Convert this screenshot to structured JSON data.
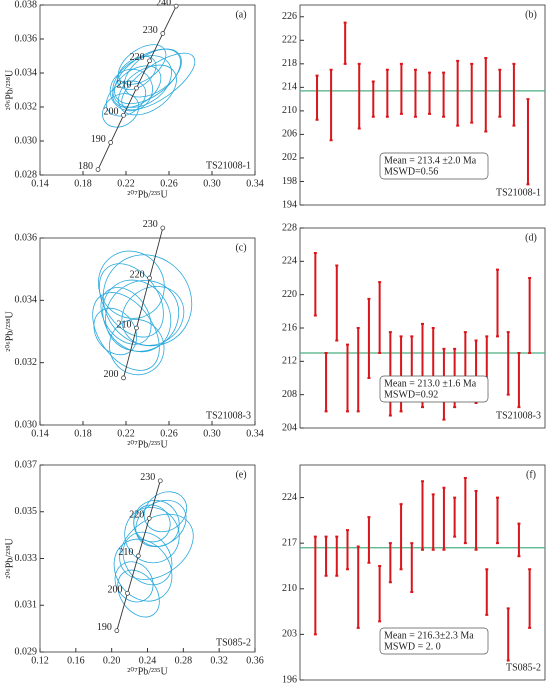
{
  "chart_data": [
    {
      "type": "concordia",
      "panel_label": "(a)",
      "sample": "TS21008-1",
      "x_label": "²⁰⁷Pb/²³⁵U",
      "y_label": "²⁰⁶Pb/²³⁸U",
      "color": "#29a9dc",
      "xlim": [
        0.14,
        0.34
      ],
      "xticks": [
        0.14,
        0.18,
        0.22,
        0.26,
        {
          "value": 0.3,
          "label": "0.30"
        },
        0.34
      ],
      "ylim": [
        0.028,
        0.038
      ],
      "yticks": [
        0.028,
        {
          "value": 0.03,
          "label": "0.030"
        },
        0.032,
        0.034,
        0.036,
        0.038
      ],
      "concordia": {
        "ages": [
          "180",
          "190",
          "200",
          "210",
          "220",
          "230",
          "240"
        ],
        "x": [
          0.19396,
          0.20576,
          0.21769,
          0.22975,
          0.24193,
          0.25423,
          0.26664
        ],
        "y": [
          0.02832,
          0.029912,
          0.031511,
          0.033113,
          0.034717,
          0.036323,
          0.037932
        ]
      },
      "ellipses": {
        "x": [
          0.235,
          0.23,
          0.24,
          0.225,
          0.245,
          0.22,
          0.25,
          0.235,
          0.23,
          0.215,
          0.24
        ],
        "y": [
          0.0335,
          0.0332,
          0.0338,
          0.033,
          0.034,
          0.0325,
          0.0335,
          0.0345,
          0.034,
          0.0318,
          0.033
        ],
        "sx": [
          0.03,
          0.025,
          0.035,
          0.02,
          0.03,
          0.02,
          0.04,
          0.025,
          0.02,
          0.018,
          0.03
        ],
        "sy": [
          0.0013,
          0.001,
          0.0012,
          0.0012,
          0.0011,
          0.0009,
          0.001,
          0.0009,
          0.0008,
          0.0009,
          0.0012
        ]
      }
    },
    {
      "type": "errorbar",
      "panel_label": "(b)",
      "sample": "TS21008-1",
      "color": "#d9161b",
      "mean_color": "#4caf82",
      "ylim": [
        194,
        228
      ],
      "yticks": [
        194,
        198,
        202,
        206,
        210,
        214,
        218,
        222,
        226
      ],
      "values": [
        212.25,
        211,
        221.5,
        212.5,
        212,
        213,
        213.75,
        213,
        213,
        212.75,
        213,
        213,
        212.75,
        213,
        212.75,
        204.75
      ],
      "errors": [
        3.75,
        6,
        3.5,
        5.5,
        3,
        4,
        4.25,
        4,
        3.5,
        3.75,
        5.5,
        5,
        6.25,
        4,
        5.25,
        7.25
      ],
      "mean": 213.4,
      "mean_text": "Mean = 213.4 ±2.0 Ma",
      "mswd_text": "MSWD=0.56"
    },
    {
      "type": "concordia",
      "panel_label": "(c)",
      "sample": "TS21008-3",
      "x_label": "²⁰⁷Pb/²³⁵U",
      "y_label": "²⁰⁶Pb/²³⁸U",
      "color": "#29a9dc",
      "xlim": [
        0.14,
        0.34
      ],
      "xticks": [
        0.14,
        0.18,
        0.22,
        0.26,
        {
          "value": 0.3,
          "label": "0.30"
        },
        0.34
      ],
      "ylim": [
        0.03,
        0.036
      ],
      "yticks": [
        {
          "value": 0.03,
          "label": "0.030"
        },
        0.032,
        0.034,
        0.036
      ],
      "concordia": {
        "ages": [
          "200",
          "210",
          "220",
          "230"
        ],
        "x": [
          0.21769,
          0.22975,
          0.24193,
          0.25423
        ],
        "y": [
          0.031511,
          0.033113,
          0.034717,
          0.036323
        ]
      },
      "ellipses": {
        "x": [
          0.23,
          0.225,
          0.22,
          0.235,
          0.24,
          0.225,
          0.21,
          0.245,
          0.23,
          0.22
        ],
        "y": [
          0.0335,
          0.034,
          0.0335,
          0.0335,
          0.034,
          0.0345,
          0.033,
          0.0335,
          0.0325,
          0.033
        ],
        "sx": [
          0.03,
          0.025,
          0.02,
          0.035,
          0.04,
          0.03,
          0.018,
          0.03,
          0.025,
          0.025
        ],
        "sy": [
          0.0012,
          0.0013,
          0.001,
          0.0011,
          0.0015,
          0.0011,
          0.0008,
          0.0009,
          0.0009,
          0.0014
        ]
      }
    },
    {
      "type": "errorbar",
      "panel_label": "(d)",
      "sample": "TS21008-3",
      "color": "#d9161b",
      "mean_color": "#4caf82",
      "ylim": [
        204,
        228
      ],
      "yticks": [
        204,
        208,
        212,
        216,
        220,
        224,
        228
      ],
      "values": [
        221.25,
        209.5,
        219,
        210,
        211,
        214.75,
        217.25,
        210.5,
        210.5,
        211.25,
        211.5,
        211.75,
        209.25,
        210,
        211.5,
        210.75,
        211.5,
        219,
        211.75,
        209.75,
        217.5
      ],
      "errors": [
        3.75,
        3.5,
        4.5,
        4,
        5,
        4.75,
        4.25,
        5,
        4.5,
        3.75,
        5,
        4.25,
        4.25,
        3.5,
        4,
        3.75,
        3.5,
        4,
        3.75,
        3.25,
        4.5
      ],
      "mean": 213.0,
      "mean_text": "Mean = 213.0 ±1.6 Ma",
      "mswd_text": "MSWD=0.92"
    },
    {
      "type": "concordia",
      "panel_label": "(e)",
      "sample": "TS085-2",
      "x_label": "²⁰⁷Pb/²³⁵U",
      "y_label": "²⁰⁶Pb/²³⁸U",
      "color": "#29a9dc",
      "xlim": [
        0.12,
        0.36
      ],
      "xticks": [
        0.12,
        0.16,
        {
          "value": 0.2,
          "label": "0.20"
        },
        0.24,
        0.28,
        0.32,
        0.36
      ],
      "ylim": [
        0.029,
        0.037
      ],
      "yticks": [
        0.029,
        0.031,
        0.033,
        0.035,
        0.037
      ],
      "concordia": {
        "ages": [
          "190",
          "200",
          "210",
          "220",
          "230"
        ],
        "x": [
          0.20576,
          0.21769,
          0.22975,
          0.24193,
          0.25423
        ],
        "y": [
          0.029912,
          0.031511,
          0.033113,
          0.034717,
          0.036323
        ]
      },
      "ellipses": {
        "x": [
          0.25,
          0.245,
          0.255,
          0.24,
          0.235,
          0.225,
          0.25,
          0.26,
          0.23,
          0.245
        ],
        "y": [
          0.0345,
          0.034,
          0.0345,
          0.033,
          0.0325,
          0.032,
          0.0335,
          0.035,
          0.0315,
          0.0345
        ],
        "sx": [
          0.025,
          0.03,
          0.03,
          0.025,
          0.03,
          0.02,
          0.045,
          0.025,
          0.02,
          0.02
        ],
        "sy": [
          0.001,
          0.0012,
          0.0009,
          0.0012,
          0.0014,
          0.0009,
          0.0012,
          0.0008,
          0.0011,
          0.0008
        ]
      }
    },
    {
      "type": "errorbar",
      "panel_label": "(f)",
      "sample": "TS085-2",
      "color": "#d9161b",
      "mean_color": "#4caf82",
      "ylim": [
        196,
        229
      ],
      "yticks": [
        196,
        203,
        210,
        217,
        224
      ],
      "values": [
        210.5,
        215,
        215,
        216,
        210.25,
        217.5,
        209.25,
        214,
        218,
        213.25,
        221.25,
        220.25,
        220.75,
        221,
        222,
        220.5,
        209.5,
        220.5,
        203,
        217.5,
        208.5
      ],
      "errors": [
        7.5,
        3,
        3,
        3,
        6.25,
        3.5,
        4.25,
        3,
        5,
        3.75,
        5.25,
        4.25,
        4.75,
        3,
        5,
        4.5,
        3.5,
        3.5,
        4,
        2.5,
        4.5
      ],
      "mean": 216.3,
      "mean_text": "Mean = 216.3±2.3 Ma",
      "mswd_text": "MSWD = 2. 0"
    }
  ]
}
